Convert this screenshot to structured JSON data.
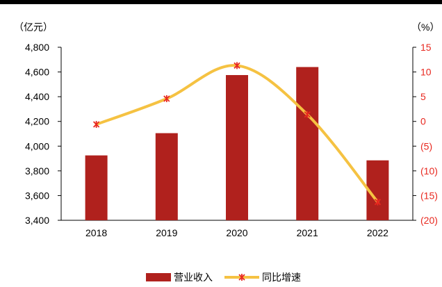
{
  "chart_data": {
    "type": "bar",
    "categories": [
      "2018",
      "2019",
      "2020",
      "2021",
      "2022"
    ],
    "series": [
      {
        "name": "营业收入",
        "type": "bar",
        "axis": "left",
        "color": "#B0211D",
        "values": [
          3925,
          4105,
          4575,
          4640,
          3885
        ]
      },
      {
        "name": "同比增速",
        "type": "line",
        "axis": "right",
        "color": "#F5C242",
        "marker_color": "#E8281F",
        "values": [
          -0.6,
          4.6,
          11.3,
          1.4,
          -16.3
        ]
      }
    ],
    "y_left": {
      "unit_label": "（亿元）",
      "range": [
        3400,
        4800
      ],
      "ticks": [
        3400,
        3600,
        3800,
        4000,
        4200,
        4400,
        4600,
        4800
      ],
      "tick_labels": [
        "3,400",
        "3,600",
        "3,800",
        "4,000",
        "4,200",
        "4,400",
        "4,600",
        "4,800"
      ]
    },
    "y_right": {
      "unit_label": "（%）",
      "range": [
        -20,
        15
      ],
      "ticks": [
        -20,
        -15,
        -10,
        -5,
        0,
        5,
        10,
        15
      ],
      "tick_labels": [
        "(20)",
        "(15)",
        "(10)",
        "(5)",
        "0",
        "5",
        "10",
        "15"
      ],
      "color": "#E8281F"
    },
    "grid": false,
    "legend_position": "bottom"
  }
}
